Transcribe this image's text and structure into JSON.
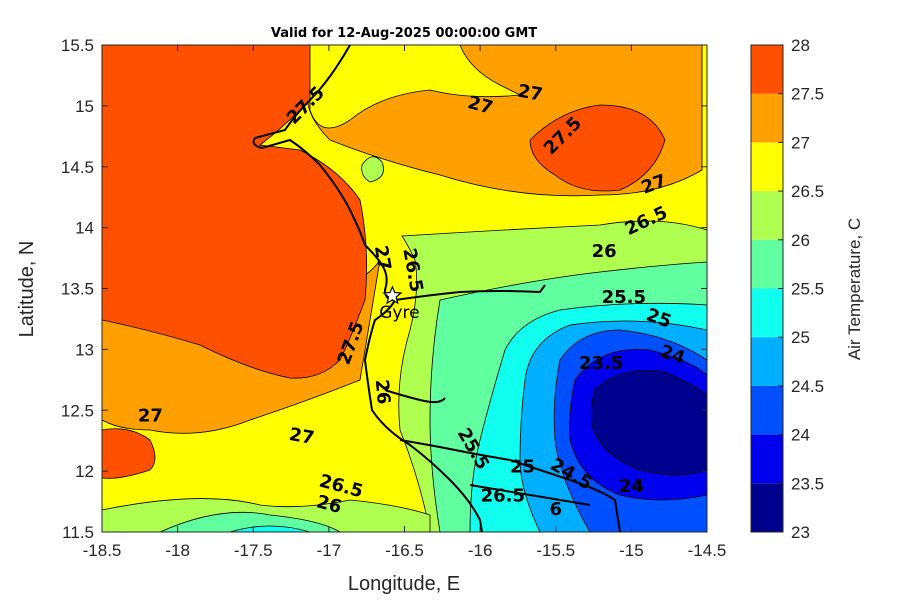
{
  "title": "Valid for 12-Aug-2025 00:00:00 GMT",
  "map": {
    "xlabel": "Longitude, E",
    "ylabel": "Latitude, N",
    "xlim": [
      -18.5,
      -14.5
    ],
    "ylim": [
      11.5,
      15.5
    ],
    "x_ticks": [
      "-18.5",
      "-18",
      "-17.5",
      "-17",
      "-16.5",
      "-16",
      "-15.5",
      "-15",
      "-14.5"
    ],
    "y_ticks": [
      "11.5",
      "12",
      "12.5",
      "13",
      "13.5",
      "14",
      "14.5",
      "15",
      "15.5"
    ],
    "grid": false,
    "city": {
      "name": "Gyre",
      "lon": -16.58,
      "lat": 13.44,
      "marker": "star-icon"
    }
  },
  "colorbar": {
    "title": "Air Temperature, C",
    "levels": [
      "23",
      "23.5",
      "24",
      "24.5",
      "25",
      "25.5",
      "26",
      "26.5",
      "27",
      "27.5",
      "28"
    ],
    "colors": [
      "#00008f",
      "#0000ef",
      "#0050ff",
      "#00afff",
      "#10ffef",
      "#60ff9f",
      "#afff50",
      "#ffff00",
      "#ffa000",
      "#ff5000",
      "#ff0000"
    ]
  },
  "contour_labels": [
    {
      "text": "27.5",
      "lon": -17.15,
      "lat": 15.0,
      "angle": -45
    },
    {
      "text": "27",
      "lon": -16.0,
      "lat": 15.0,
      "angle": 15
    },
    {
      "text": "27",
      "lon": -15.67,
      "lat": 15.1,
      "angle": 10
    },
    {
      "text": "27.5",
      "lon": -15.45,
      "lat": 14.75,
      "angle": -45
    },
    {
      "text": "27",
      "lon": -14.85,
      "lat": 14.35,
      "angle": -20
    },
    {
      "text": "26.5",
      "lon": -14.9,
      "lat": 14.05,
      "angle": -25
    },
    {
      "text": "26",
      "lon": -15.18,
      "lat": 13.8,
      "angle": 0
    },
    {
      "text": "26.5",
      "lon": -16.45,
      "lat": 13.65,
      "angle": 80
    },
    {
      "text": "27",
      "lon": -16.65,
      "lat": 13.75,
      "angle": 80
    },
    {
      "text": "25.5",
      "lon": -15.05,
      "lat": 13.42,
      "angle": 0
    },
    {
      "text": "25",
      "lon": -14.82,
      "lat": 13.25,
      "angle": 20
    },
    {
      "text": "27.5",
      "lon": -16.85,
      "lat": 13.05,
      "angle": -70
    },
    {
      "text": "24",
      "lon": -14.73,
      "lat": 12.95,
      "angle": 20
    },
    {
      "text": "23.5",
      "lon": -15.2,
      "lat": 12.88,
      "angle": 0
    },
    {
      "text": "26",
      "lon": -16.65,
      "lat": 12.65,
      "angle": 85
    },
    {
      "text": "27",
      "lon": -18.18,
      "lat": 12.45,
      "angle": 0
    },
    {
      "text": "27",
      "lon": -17.18,
      "lat": 12.28,
      "angle": 10
    },
    {
      "text": "25.5",
      "lon": -16.05,
      "lat": 12.18,
      "angle": 60
    },
    {
      "text": "25",
      "lon": -15.72,
      "lat": 12.03,
      "angle": 0
    },
    {
      "text": "24.5",
      "lon": -15.4,
      "lat": 11.97,
      "angle": 30
    },
    {
      "text": "24",
      "lon": -15.0,
      "lat": 11.87,
      "angle": 0
    },
    {
      "text": "26.5",
      "lon": -16.92,
      "lat": 11.87,
      "angle": 15
    },
    {
      "text": "26",
      "lon": -17.0,
      "lat": 11.72,
      "angle": 15
    },
    {
      "text": "26.5",
      "lon": -15.85,
      "lat": 11.79,
      "angle": 0
    },
    {
      "text": "6",
      "lon": -15.5,
      "lat": 11.68,
      "angle": 0
    }
  ]
}
